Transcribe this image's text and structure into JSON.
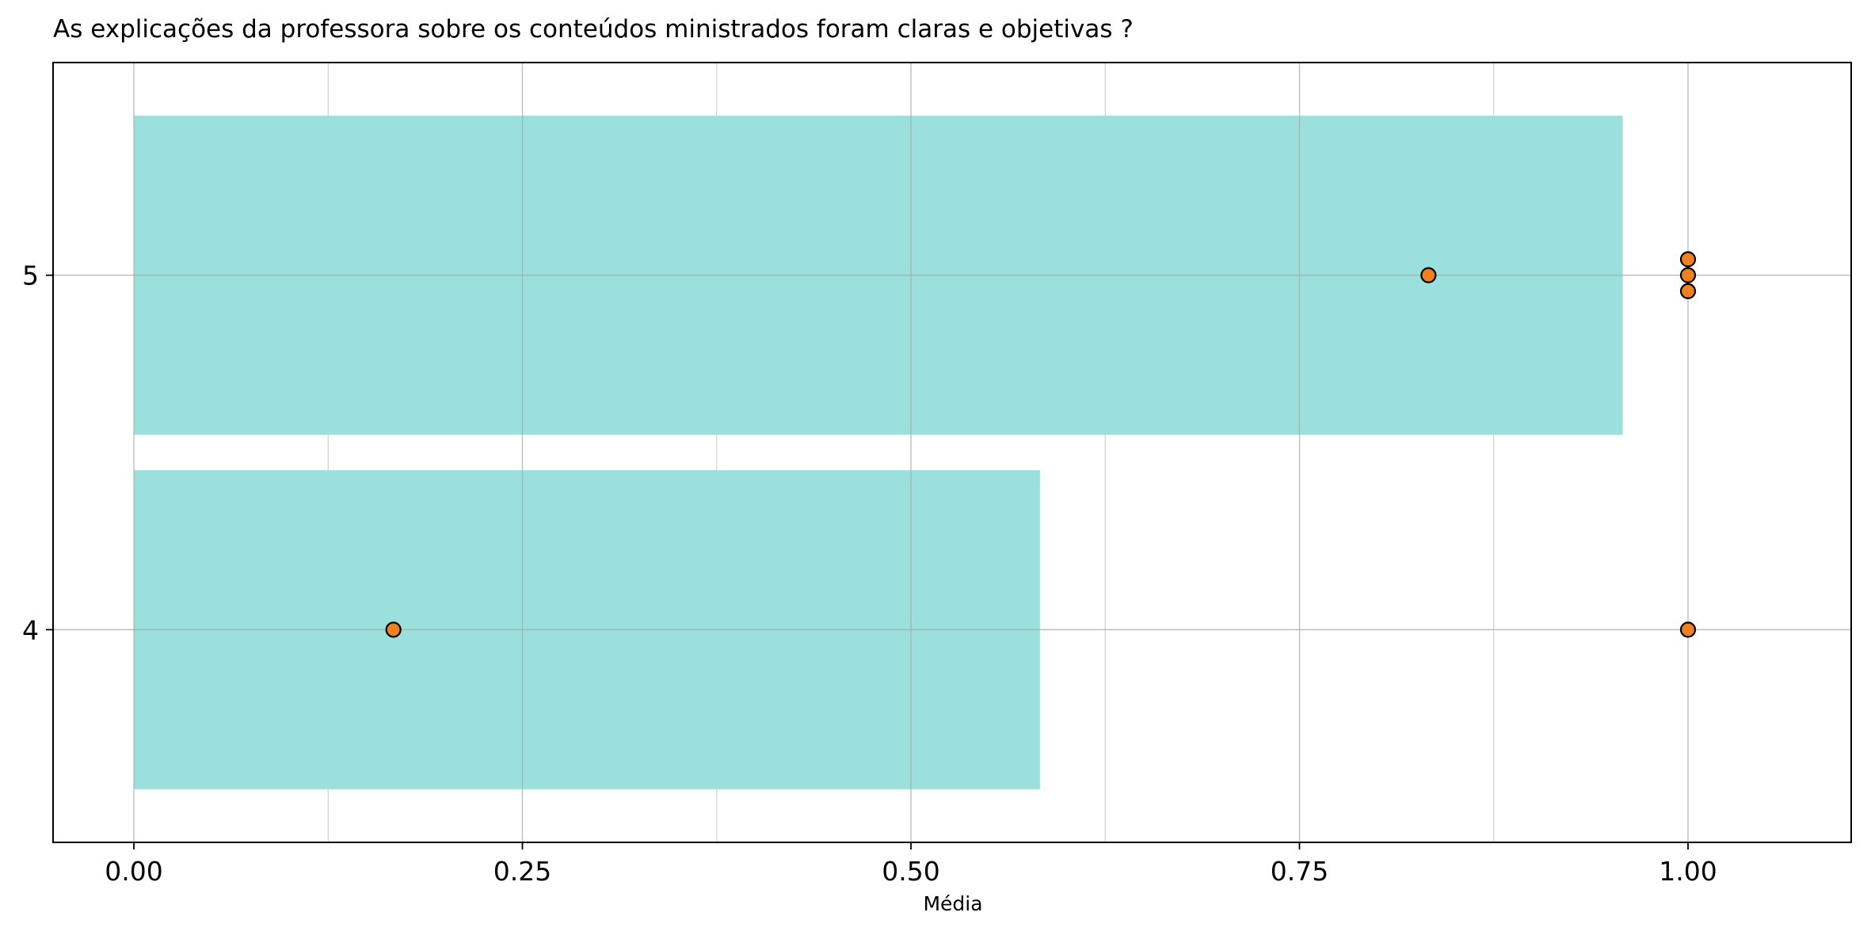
{
  "chart_data": {
    "type": "bar",
    "orientation": "horizontal",
    "title": "As explicações da professora sobre os conteúdos ministrados foram claras e objetivas ?",
    "xlabel": "Média",
    "ylabel": "",
    "categories": [
      "4",
      "5"
    ],
    "bars": [
      {
        "category": "4",
        "value": 0.583
      },
      {
        "category": "5",
        "value": 0.958
      }
    ],
    "points": [
      {
        "category": "4",
        "x": 0.167,
        "offset": 0
      },
      {
        "category": "4",
        "x": 1.0,
        "offset": 0
      },
      {
        "category": "5",
        "x": 0.833,
        "offset": 0
      },
      {
        "category": "5",
        "x": 1.0,
        "offset": 0.045
      },
      {
        "category": "5",
        "x": 1.0,
        "offset": 0
      },
      {
        "category": "5",
        "x": 1.0,
        "offset": -0.045
      }
    ],
    "xlim": [
      -0.052,
      1.105
    ],
    "ylim": [
      3.4,
      5.6
    ],
    "xticks": [
      "0.00",
      "0.25",
      "0.50",
      "0.75",
      "1.00"
    ],
    "xtick_values": [
      0.0,
      0.25,
      0.5,
      0.75,
      1.0
    ],
    "xminor_values": [
      0.125,
      0.375,
      0.625,
      0.875
    ],
    "grid": true,
    "colors": {
      "bar": "#9be0dc",
      "point_fill": "#f08020",
      "point_edge": "#000000",
      "grid_major": "#a8a8a8",
      "grid_minor": "#d0d0d0"
    }
  }
}
